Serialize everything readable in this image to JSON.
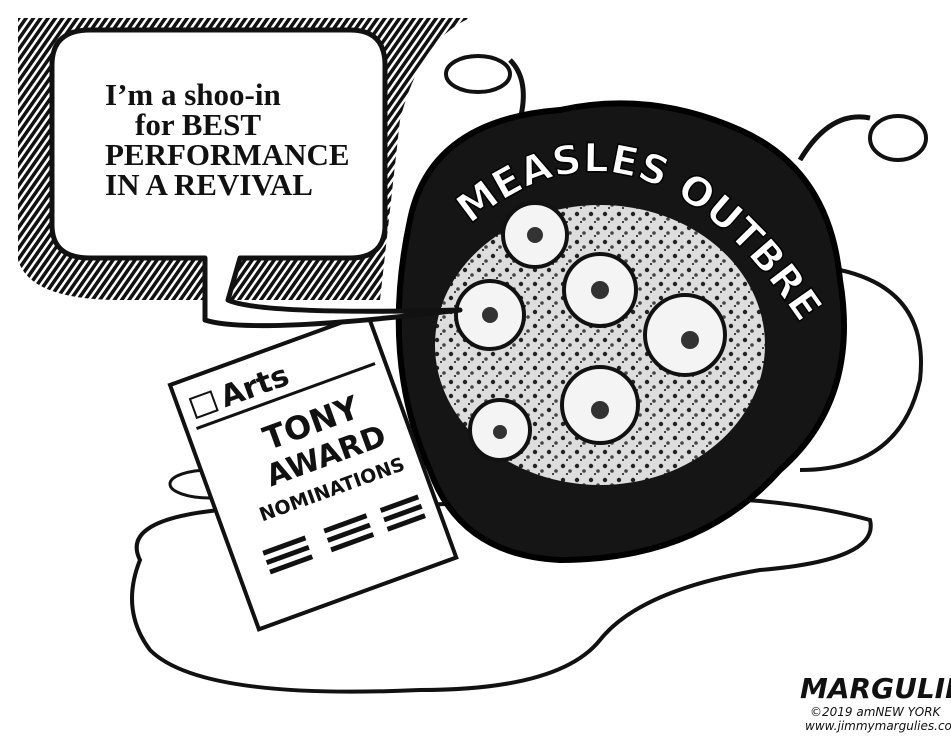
{
  "speech_bubble": {
    "lines": [
      "I’m a shoo-in",
      "for BEST",
      "PERFORMANCE",
      "IN A REVIVAL"
    ]
  },
  "virus": {
    "label": "MEASLES OUTBREAK"
  },
  "newspaper": {
    "section": "Arts",
    "headline": [
      "TONY",
      "AWARD"
    ],
    "subhead": "NOMINATIONS"
  },
  "signature": {
    "name": "MARGULIES",
    "copyright": "©2019 amNEW YORK",
    "website": "www.jimmymargulies.com"
  }
}
